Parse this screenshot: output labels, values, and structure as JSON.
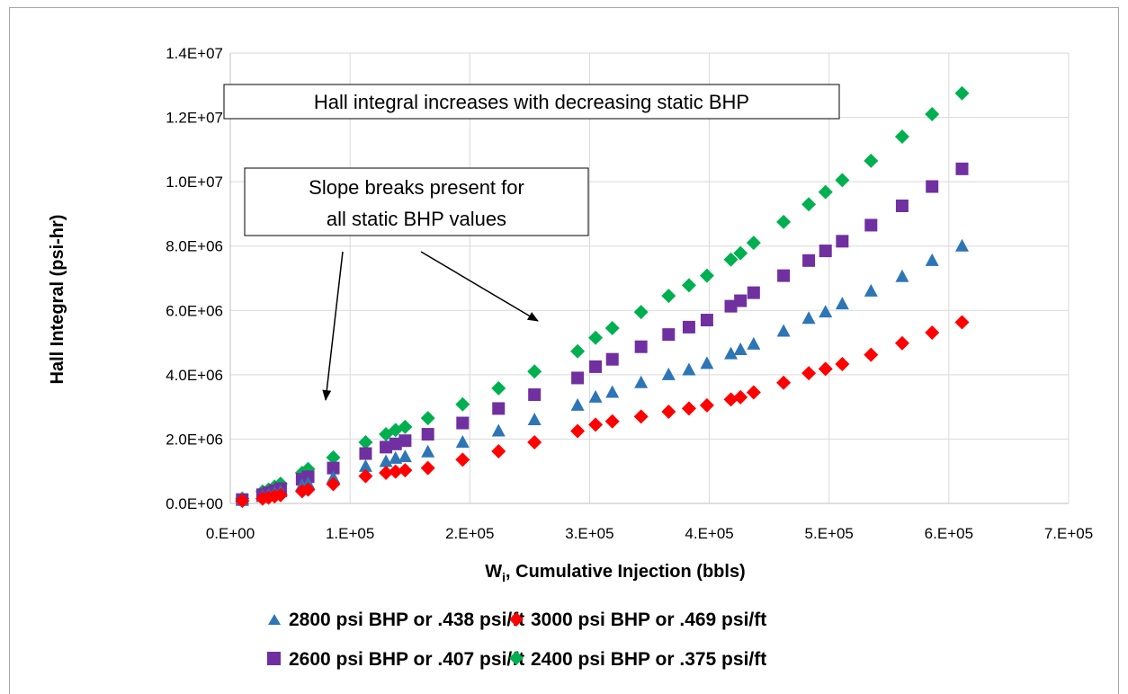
{
  "chart_data": {
    "type": "scatter",
    "xlabel": "W",
    "xlabel_sub": "i",
    "xlabel_rest": ", Cumulative Injection (bbls)",
    "ylabel": "Hall Integral (psi-hr)",
    "xlim": [
      0,
      700000
    ],
    "ylim": [
      0,
      14000000
    ],
    "x_ticks": [
      0,
      100000,
      200000,
      300000,
      400000,
      500000,
      600000,
      700000
    ],
    "x_tick_labels": [
      "0.E+00",
      "1.E+05",
      "2.E+05",
      "3.E+05",
      "4.E+05",
      "5.E+05",
      "6.E+05",
      "7.E+05"
    ],
    "y_ticks": [
      0,
      2000000,
      4000000,
      6000000,
      8000000,
      10000000,
      12000000,
      14000000
    ],
    "y_tick_labels": [
      "0.0E+00",
      "2.0E+06",
      "4.0E+06",
      "6.0E+06",
      "8.0E+06",
      "1.0E+07",
      "1.2E+07",
      "1.4E+07"
    ],
    "grid": true,
    "legend_position": "bottom",
    "x": [
      10000,
      27000,
      32000,
      37000,
      42000,
      60000,
      65000,
      86000,
      113000,
      130000,
      138000,
      146000,
      165000,
      194000,
      224000,
      254000,
      290000,
      305000,
      319000,
      343000,
      366000,
      383000,
      398000,
      418000,
      426000,
      437000,
      462000,
      483000,
      497000,
      511000,
      535000,
      561000,
      586000,
      611000
    ],
    "series": [
      {
        "name": "2800 psi BHP or .438 psi/ft",
        "marker": "triangle",
        "color": "#2e75b6",
        "values": [
          100000,
          210000,
          260000,
          310000,
          360000,
          560000,
          620000,
          800000,
          1150000,
          1300000,
          1400000,
          1450000,
          1600000,
          1900000,
          2250000,
          2600000,
          3050000,
          3300000,
          3450000,
          3750000,
          4000000,
          4150000,
          4350000,
          4650000,
          4780000,
          4950000,
          5350000,
          5750000,
          5950000,
          6200000,
          6600000,
          7050000,
          7550000,
          8000000
        ]
      },
      {
        "name": "3000 psi BHP or .469 psi/ft",
        "marker": "diamond",
        "color": "#ff0000",
        "values": [
          80000,
          150000,
          180000,
          220000,
          260000,
          380000,
          430000,
          600000,
          850000,
          950000,
          990000,
          1030000,
          1100000,
          1360000,
          1620000,
          1900000,
          2250000,
          2450000,
          2550000,
          2700000,
          2850000,
          2950000,
          3050000,
          3230000,
          3300000,
          3450000,
          3750000,
          4050000,
          4180000,
          4330000,
          4620000,
          4980000,
          5310000,
          5630000
        ]
      },
      {
        "name": "2600 psi BHP or .407 psi/ft",
        "marker": "square",
        "color": "#7030a0",
        "values": [
          120000,
          270000,
          330000,
          390000,
          460000,
          750000,
          830000,
          1100000,
          1550000,
          1750000,
          1850000,
          1950000,
          2150000,
          2500000,
          2950000,
          3380000,
          3900000,
          4250000,
          4480000,
          4870000,
          5250000,
          5480000,
          5700000,
          6130000,
          6300000,
          6550000,
          7080000,
          7550000,
          7850000,
          8150000,
          8650000,
          9250000,
          9850000,
          10400000
        ]
      },
      {
        "name": "2400 psi BHP or .375 psi/ft",
        "marker": "diamond",
        "color": "#00b050",
        "values": [
          150000,
          370000,
          430000,
          520000,
          610000,
          950000,
          1070000,
          1430000,
          1900000,
          2150000,
          2280000,
          2380000,
          2650000,
          3080000,
          3580000,
          4100000,
          4730000,
          5150000,
          5450000,
          5950000,
          6450000,
          6780000,
          7080000,
          7580000,
          7780000,
          8100000,
          8750000,
          9300000,
          9680000,
          10050000,
          10650000,
          11400000,
          12100000,
          12750000
        ]
      }
    ],
    "annotations": [
      {
        "text": "Hall integral increases with decreasing static BHP"
      },
      {
        "text_line1": "Slope breaks present for",
        "text_line2": "all static BHP values"
      }
    ]
  }
}
